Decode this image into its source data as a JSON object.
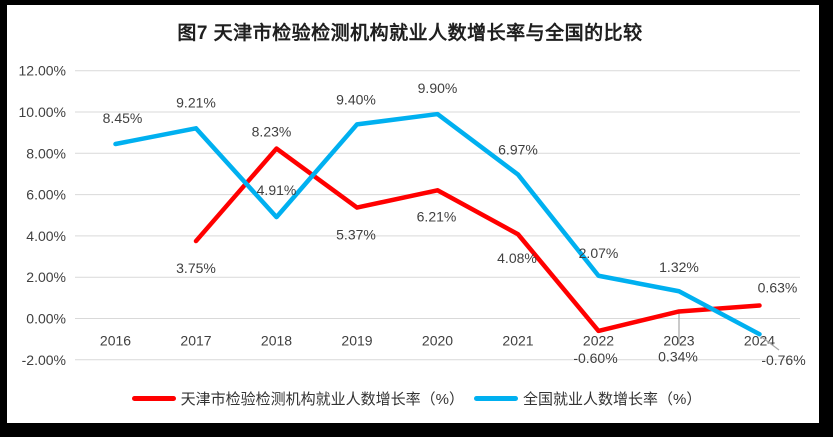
{
  "figure": {
    "title": "图7 天津市检验检测机构就业人数增长率与全国的比较"
  },
  "chart_data": {
    "type": "line",
    "title": "图7 天津市检验检测机构就业人数增长率与全国的比较",
    "categories": [
      "2016",
      "2017",
      "2018",
      "2019",
      "2020",
      "2021",
      "2022",
      "2023",
      "2024"
    ],
    "series": [
      {
        "id": "tianjin",
        "name": "天津市检验检测机构就业人数增长率（%）",
        "color": "#FF0000",
        "values": [
          null,
          3.75,
          8.23,
          5.37,
          6.21,
          4.08,
          -0.6,
          0.34,
          0.63
        ],
        "labels": [
          "",
          "3.75%",
          "8.23%",
          "5.37%",
          "6.21%",
          "4.08%",
          "-0.60%",
          "0.34%",
          "0.63%"
        ]
      },
      {
        "id": "national",
        "name": "全国就业人数增长率（%）",
        "color": "#00B0F0",
        "values": [
          8.45,
          9.21,
          4.91,
          9.4,
          9.9,
          6.97,
          2.07,
          1.32,
          -0.76
        ],
        "labels": [
          "8.45%",
          "9.21%",
          "4.91%",
          "9.40%",
          "9.90%",
          "6.97%",
          "2.07%",
          "1.32%",
          "-0.76%"
        ]
      }
    ],
    "y_axis": {
      "labels": [
        "12.00%",
        "10.00%",
        "8.00%",
        "6.00%",
        "4.00%",
        "2.00%",
        "0.00%",
        "-2.00%"
      ],
      "values": [
        12,
        10,
        8,
        6,
        4,
        2,
        0,
        -2
      ],
      "min": -2,
      "max": 12
    },
    "grid": "horizontal",
    "legend_position": "bottom",
    "gridline_color": "#D9D9D9",
    "leader_line_color": "#A6A6A6",
    "label_color": "#404040"
  },
  "legend": {
    "items": [
      {
        "label": "天津市检验检测机构就业人数增长率（%）",
        "color": "#FF0000"
      },
      {
        "label": "全国就业人数增长率（%）",
        "color": "#00B0F0"
      }
    ]
  }
}
